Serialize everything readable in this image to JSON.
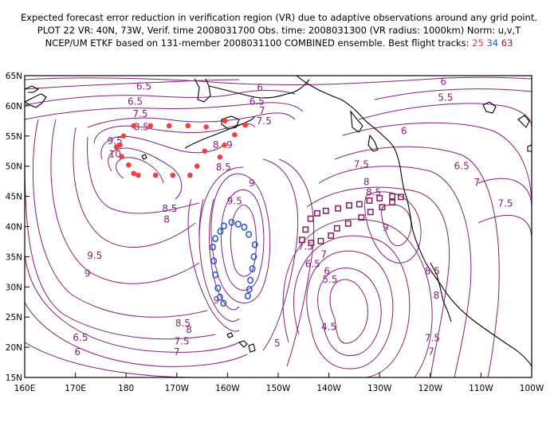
{
  "header": {
    "line1": "Expected forecast error reduction in verification region (VR) due to adaptive observations around any grid point.",
    "line2": "PLOT 22 VR: 40N, 73W, Verif. time 2008031700 Obs. time: 2008031300 (VR radius: 1000km) Norm: u,v,T",
    "line3": "NCEP/UM ETKF based on 131-member 2008031100 COMBINED ensemble.  Best flight tracks:",
    "tracks": [
      "25",
      "34",
      "63"
    ]
  },
  "axes": {
    "lon_labels": [
      "160E",
      "170E",
      "180",
      "170W",
      "160W",
      "150W",
      "140W",
      "130W",
      "120W",
      "110W",
      "100W"
    ],
    "lat_labels": [
      "65N",
      "60N",
      "55N",
      "50N",
      "45N",
      "40N",
      "35N",
      "30N",
      "25N",
      "20N",
      "15N"
    ]
  },
  "contour_labels": [
    {
      "text": "6.5",
      "lon": -176.5,
      "lat": 63.2
    },
    {
      "text": "6.5",
      "lon": -178.2,
      "lat": 60.7
    },
    {
      "text": "7.5",
      "lon": -177.2,
      "lat": 58.7
    },
    {
      "text": "8.5",
      "lon": -177.0,
      "lat": 56.5
    },
    {
      "text": "9.5",
      "lon": -182.2,
      "lat": 54.2
    },
    {
      "text": "10",
      "lon": -182.2,
      "lat": 52.0
    },
    {
      "text": "6",
      "lon": -153.6,
      "lat": 63.0
    },
    {
      "text": "6.5",
      "lon": -154.2,
      "lat": 60.7
    },
    {
      "text": "7",
      "lon": -153.2,
      "lat": 59.2
    },
    {
      "text": "7.5",
      "lon": -152.8,
      "lat": 57.5
    },
    {
      "text": "8",
      "lon": -162.3,
      "lat": 53.5
    },
    {
      "text": "9",
      "lon": -159.6,
      "lat": 53.5
    },
    {
      "text": "8.5",
      "lon": -160.8,
      "lat": 49.8
    },
    {
      "text": "9",
      "lon": -155.2,
      "lat": 47.2
    },
    {
      "text": "9.5",
      "lon": -158.6,
      "lat": 44.2
    },
    {
      "text": "8.5",
      "lon": -171.4,
      "lat": 43.0
    },
    {
      "text": "8",
      "lon": -172.0,
      "lat": 41.2
    },
    {
      "text": "9.5",
      "lon": -186.2,
      "lat": 35.2
    },
    {
      "text": "9",
      "lon": -187.6,
      "lat": 32.2
    },
    {
      "text": "9",
      "lon": -162.2,
      "lat": 27.8
    },
    {
      "text": "8.5",
      "lon": -168.8,
      "lat": 24.0
    },
    {
      "text": "8",
      "lon": -167.6,
      "lat": 22.9
    },
    {
      "text": "7.5",
      "lon": -169.0,
      "lat": 21.0
    },
    {
      "text": "7",
      "lon": -170.0,
      "lat": 19.2
    },
    {
      "text": "6.5",
      "lon": -189.0,
      "lat": 21.6
    },
    {
      "text": "6",
      "lon": -189.6,
      "lat": 19.2
    },
    {
      "text": "7.5",
      "lon": -144.6,
      "lat": 36.7
    },
    {
      "text": "7",
      "lon": -141.0,
      "lat": 35.4
    },
    {
      "text": "6.5",
      "lon": -143.2,
      "lat": 33.8
    },
    {
      "text": "6",
      "lon": -140.4,
      "lat": 32.6
    },
    {
      "text": "5.5",
      "lon": -139.8,
      "lat": 31.2
    },
    {
      "text": "5",
      "lon": -150.2,
      "lat": 20.7
    },
    {
      "text": "4.5",
      "lon": -140.0,
      "lat": 23.4
    },
    {
      "text": "8",
      "lon": -132.6,
      "lat": 47.4
    },
    {
      "text": "7.5",
      "lon": -133.6,
      "lat": 50.3
    },
    {
      "text": "8.5",
      "lon": -131.2,
      "lat": 45.7
    },
    {
      "text": "9",
      "lon": -128.8,
      "lat": 39.8
    },
    {
      "text": "8.5",
      "lon": -119.6,
      "lat": 32.6
    },
    {
      "text": "8",
      "lon": -118.8,
      "lat": 28.6
    },
    {
      "text": "7.5",
      "lon": -119.6,
      "lat": 21.5
    },
    {
      "text": "7",
      "lon": -119.8,
      "lat": 19.3
    },
    {
      "text": "6",
      "lon": -125.2,
      "lat": 55.8
    },
    {
      "text": "5.5",
      "lon": -117.0,
      "lat": 61.4
    },
    {
      "text": "6",
      "lon": -117.4,
      "lat": 64.0
    },
    {
      "text": "6.5",
      "lon": -113.8,
      "lat": 50.0
    },
    {
      "text": "7",
      "lon": -110.8,
      "lat": 47.3
    },
    {
      "text": "7.5",
      "lon": -105.2,
      "lat": 43.8
    }
  ],
  "tracks": {
    "red": {
      "color": "#f04040",
      "points": [
        [
          -178.5,
          56.7
        ],
        [
          -175.2,
          56.7
        ],
        [
          -171.5,
          56.7
        ],
        [
          -167.8,
          56.7
        ],
        [
          -164.2,
          56.5
        ],
        [
          -160.5,
          57.5
        ],
        [
          -156.5,
          56.8
        ],
        [
          -158.6,
          55.2
        ],
        [
          -160.6,
          53.5
        ],
        [
          -164.5,
          52.5
        ],
        [
          -161.5,
          51.5
        ],
        [
          -166.0,
          50.0
        ],
        [
          -167.4,
          48.5
        ],
        [
          -170.8,
          48.5
        ],
        [
          -174.2,
          48.5
        ],
        [
          -177.6,
          48.5
        ],
        [
          -178.5,
          48.8
        ],
        [
          -179.5,
          50.2
        ],
        [
          -180.9,
          51.6
        ],
        [
          -181.9,
          53.2
        ],
        [
          -180.5,
          55.0
        ],
        [
          -181.2,
          53.5
        ]
      ]
    },
    "blue": {
      "color": "#2a58d9",
      "points": [
        [
          -160.8,
          27.3
        ],
        [
          -161.5,
          28.3
        ],
        [
          -161.9,
          29.8
        ],
        [
          -162.4,
          32.0
        ],
        [
          -162.7,
          34.3
        ],
        [
          -162.9,
          36.6
        ],
        [
          -162.4,
          38.0
        ],
        [
          -161.4,
          39.2
        ],
        [
          -160.7,
          40.1
        ],
        [
          -159.2,
          40.7
        ],
        [
          -157.9,
          40.4
        ],
        [
          -156.7,
          39.9
        ],
        [
          -155.8,
          38.7
        ],
        [
          -154.6,
          37.0
        ],
        [
          -154.8,
          35.0
        ],
        [
          -155.1,
          33.0
        ],
        [
          -155.5,
          31.1
        ],
        [
          -155.7,
          29.6
        ],
        [
          -156.0,
          28.5
        ]
      ]
    },
    "purple": {
      "color": "#8a1a5a",
      "points": [
        [
          -145.3,
          37.8
        ],
        [
          -143.5,
          37.3
        ],
        [
          -141.6,
          37.6
        ],
        [
          -139.6,
          38.5
        ],
        [
          -138.4,
          39.7
        ],
        [
          -136.2,
          40.5
        ],
        [
          -133.6,
          41.5
        ],
        [
          -131.8,
          42.4
        ],
        [
          -129.5,
          43.2
        ],
        [
          -127.5,
          44.0
        ],
        [
          -125.8,
          44.9
        ],
        [
          -127.5,
          45.0
        ],
        [
          -130.0,
          44.7
        ],
        [
          -132.0,
          44.3
        ],
        [
          -134.0,
          43.7
        ],
        [
          -136.0,
          43.5
        ],
        [
          -138.2,
          43.0
        ],
        [
          -140.6,
          42.6
        ],
        [
          -142.3,
          42.2
        ],
        [
          -143.6,
          41.3
        ],
        [
          -144.6,
          39.5
        ]
      ]
    }
  }
}
